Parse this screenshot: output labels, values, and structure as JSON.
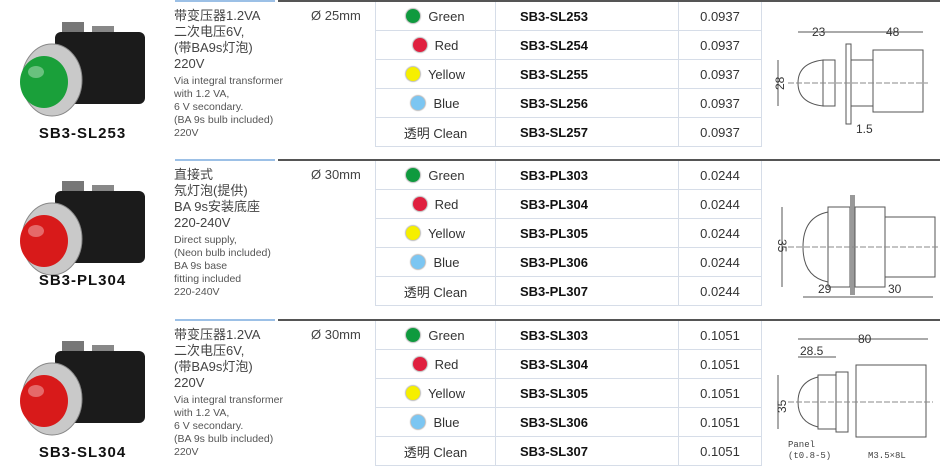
{
  "colors": {
    "green": "#0f9a3e",
    "red": "#e0203f",
    "yellow": "#f6ef00",
    "blue": "#7cc6f2",
    "clean": null
  },
  "products": [
    {
      "model": "SB3-SL253",
      "lens_color": "#1aa03a",
      "desc_cn": "带变压器1.2VA\n二次电压6V,\n(带BA9s灯泡)\n220V",
      "desc_en": "Via integral transformer\nwith 1.2 VA,\n6 V secondary.\n(BA 9s bulb included)\n220V",
      "size": "Ø 25mm",
      "rows": [
        {
          "color_key": "green",
          "color": "Green",
          "model": "SB3-SL253",
          "price": "0.0937"
        },
        {
          "color_key": "red",
          "color": "Red",
          "model": "SB3-SL254",
          "price": "0.0937"
        },
        {
          "color_key": "yellow",
          "color": "Yellow",
          "model": "SB3-SL255",
          "price": "0.0937"
        },
        {
          "color_key": "blue",
          "color": "Blue",
          "model": "SB3-SL256",
          "price": "0.0937"
        },
        {
          "color_key": "clean",
          "color": "透明 Clean",
          "model": "SB3-SL257",
          "price": "0.0937"
        }
      ],
      "diagram": {
        "type": "a",
        "dims": [
          "23",
          "48",
          "28",
          "1.5"
        ]
      }
    },
    {
      "model": "SB3-PL304",
      "lens_color": "#d81a1a",
      "desc_cn": "直接式\n氖灯泡(提供)\nBA 9s安装底座\n220-240V",
      "desc_en": "Direct supply,\n(Neon bulb included)\nBA 9s base\nfitting included\n220-240V",
      "size": "Ø 30mm",
      "rows": [
        {
          "color_key": "green",
          "color": "Green",
          "model": "SB3-PL303",
          "price": "0.0244"
        },
        {
          "color_key": "red",
          "color": "Red",
          "model": "SB3-PL304",
          "price": "0.0244"
        },
        {
          "color_key": "yellow",
          "color": "Yellow",
          "model": "SB3-PL305",
          "price": "0.0244"
        },
        {
          "color_key": "blue",
          "color": "Blue",
          "model": "SB3-PL306",
          "price": "0.0244"
        },
        {
          "color_key": "clean",
          "color": "透明 Clean",
          "model": "SB3-PL307",
          "price": "0.0244"
        }
      ],
      "diagram": {
        "type": "b",
        "dims": [
          "35",
          "29",
          "30"
        ]
      }
    },
    {
      "model": "SB3-SL304",
      "lens_color": "#d81a1a",
      "desc_cn": "带变压器1.2VA\n二次电压6V,\n(带BA9s灯泡)\n220V",
      "desc_en": "Via integral transformer\nwith 1.2 VA,\n6 V secondary.\n(BA 9s bulb included)\n220V",
      "size": "Ø 30mm",
      "rows": [
        {
          "color_key": "green",
          "color": "Green",
          "model": "SB3-SL303",
          "price": "0.1051"
        },
        {
          "color_key": "red",
          "color": "Red",
          "model": "SB3-SL304",
          "price": "0.1051"
        },
        {
          "color_key": "yellow",
          "color": "Yellow",
          "model": "SB3-SL305",
          "price": "0.1051"
        },
        {
          "color_key": "blue",
          "color": "Blue",
          "model": "SB3-SL306",
          "price": "0.1051"
        },
        {
          "color_key": "clean",
          "color": "透明 Clean",
          "model": "SB3-SL307",
          "price": "0.1051"
        }
      ],
      "diagram": {
        "type": "c",
        "dims": [
          "80",
          "28.5",
          "35",
          "Panel",
          "(t0.8-5)",
          "M3.5×8L"
        ]
      }
    }
  ]
}
